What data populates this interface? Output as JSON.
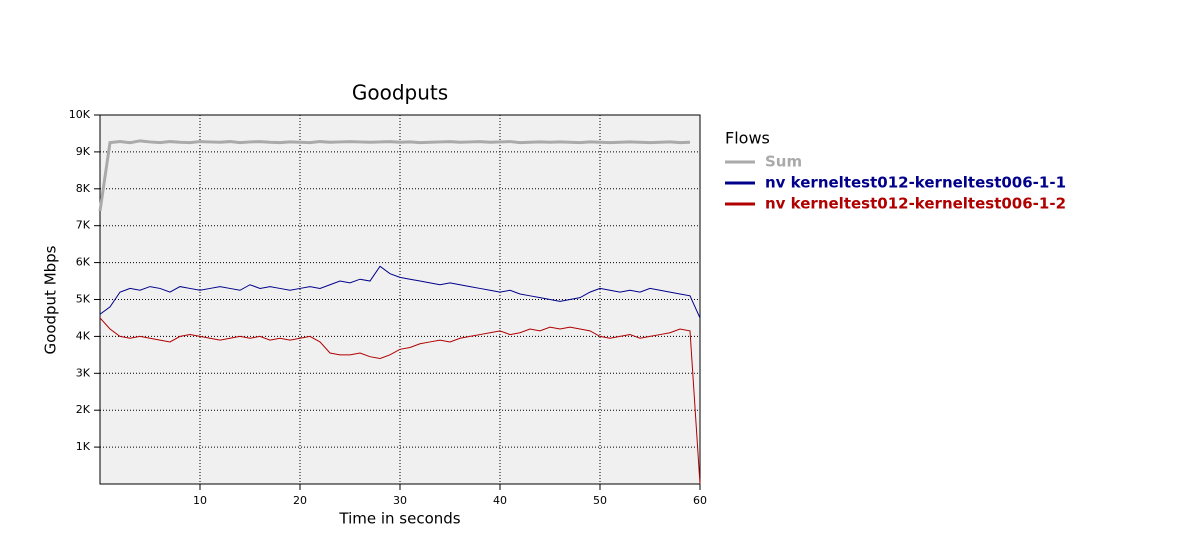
{
  "chart_data": {
    "type": "line",
    "title": "Goodputs",
    "x_label": "Time in seconds",
    "y_label": "Goodput Mbps",
    "legend_title": "Flows",
    "legend": "outside-right",
    "grid": true,
    "background": "#f0f0f0",
    "x": [
      0,
      1,
      2,
      3,
      4,
      5,
      6,
      7,
      8,
      9,
      10,
      11,
      12,
      13,
      14,
      15,
      16,
      17,
      18,
      19,
      20,
      21,
      22,
      23,
      24,
      25,
      26,
      27,
      28,
      29,
      30,
      31,
      32,
      33,
      34,
      35,
      36,
      37,
      38,
      39,
      40,
      41,
      42,
      43,
      44,
      45,
      46,
      47,
      48,
      49,
      50,
      51,
      52,
      53,
      54,
      55,
      56,
      57,
      58,
      59,
      60
    ],
    "xlim": [
      0,
      60
    ],
    "xticks": [
      10,
      20,
      30,
      40,
      50,
      60
    ],
    "ylim": [
      0,
      10000
    ],
    "yticks": [
      {
        "value": 1000,
        "label": "1K"
      },
      {
        "value": 2000,
        "label": "2K"
      },
      {
        "value": 3000,
        "label": "3K"
      },
      {
        "value": 4000,
        "label": "4K"
      },
      {
        "value": 5000,
        "label": "5K"
      },
      {
        "value": 6000,
        "label": "6K"
      },
      {
        "value": 7000,
        "label": "7K"
      },
      {
        "value": 8000,
        "label": "8K"
      },
      {
        "value": 9000,
        "label": "9K"
      },
      {
        "value": 10000,
        "label": "10K"
      }
    ],
    "series": [
      {
        "name": "Sum",
        "color": "#aaaaaa",
        "width": 3,
        "values": [
          7400,
          9250,
          9280,
          9250,
          9300,
          9270,
          9250,
          9280,
          9260,
          9250,
          9280,
          9270,
          9260,
          9280,
          9250,
          9270,
          9280,
          9260,
          9250,
          9270,
          9260,
          9250,
          9280,
          9260,
          9270,
          9280,
          9270,
          9260,
          9270,
          9280,
          9260,
          9270,
          9250,
          9260,
          9270,
          9280,
          9260,
          9270,
          9280,
          9260,
          9270,
          9280,
          9250,
          9260,
          9270,
          9260,
          9270,
          9260,
          9250,
          9270,
          9260,
          9250,
          9260,
          9270,
          9260,
          9250,
          9260,
          9270,
          9250,
          9260,
          null
        ]
      },
      {
        "name": "nv kerneltest012-kerneltest006-1-1",
        "color": "#00008b",
        "width": 1,
        "values": [
          4600,
          4800,
          5200,
          5300,
          5250,
          5350,
          5300,
          5200,
          5350,
          5300,
          5250,
          5300,
          5350,
          5300,
          5250,
          5400,
          5300,
          5350,
          5300,
          5250,
          5300,
          5350,
          5300,
          5400,
          5500,
          5450,
          5550,
          5500,
          5900,
          5700,
          5600,
          5550,
          5500,
          5450,
          5400,
          5450,
          5400,
          5350,
          5300,
          5250,
          5200,
          5250,
          5150,
          5100,
          5050,
          5000,
          4950,
          5000,
          5050,
          5200,
          5300,
          5250,
          5200,
          5250,
          5200,
          5300,
          5250,
          5200,
          5150,
          5100,
          4500
        ]
      },
      {
        "name": "nv kerneltest012-kerneltest006-1-2",
        "color": "#b00000",
        "width": 1,
        "values": [
          4500,
          4200,
          4000,
          3950,
          4000,
          3950,
          3900,
          3850,
          4000,
          4050,
          4000,
          3950,
          3900,
          3950,
          4000,
          3950,
          4000,
          3900,
          3950,
          3900,
          3950,
          4000,
          3850,
          3550,
          3500,
          3500,
          3550,
          3450,
          3400,
          3500,
          3650,
          3700,
          3800,
          3850,
          3900,
          3850,
          3950,
          4000,
          4050,
          4100,
          4150,
          4050,
          4100,
          4200,
          4150,
          4250,
          4200,
          4250,
          4200,
          4150,
          4000,
          3950,
          4000,
          4050,
          3950,
          4000,
          4050,
          4100,
          4200,
          4150,
          0
        ]
      }
    ]
  }
}
